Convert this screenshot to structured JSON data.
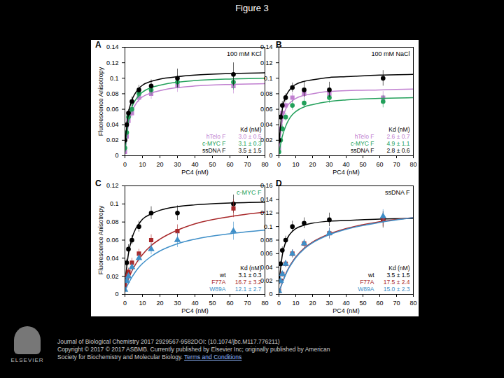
{
  "slide": {
    "title": "Figure 3",
    "logo": "ELSEVIER",
    "footer": [
      "Journal of Biological Chemistry 2017 2929567-9582DOI: (10.1074/jbc.M117.776211)",
      "Copyright © 2017 © 2017 ASBMB. Currently published by Elsevier Inc; originally published by American",
      "Society for Biochemistry and Molecular Biology."
    ],
    "footer_link": "Terms and Conditions"
  },
  "chart_data": [
    {
      "type": "scatter",
      "title": "A",
      "annotation": {
        "text": "100 mM KCl",
        "color": "#000000"
      },
      "x_label": "PC4 (nM)",
      "y_label": "Fluorescence Anisotropy",
      "legend_title": "Kd (nM)",
      "legend": "bottom-right",
      "grid": false,
      "xlim": [
        0,
        80
      ],
      "xticks": [
        0,
        10,
        20,
        30,
        40,
        50,
        60,
        70,
        80
      ],
      "ylim": [
        0,
        0.14
      ],
      "yticks": [
        0,
        0.02,
        0.04,
        0.06,
        0.08,
        0.1,
        0.12,
        0.14
      ],
      "x": [
        0,
        1,
        2,
        4,
        8,
        15,
        30,
        62
      ],
      "fit_x": [
        0,
        2,
        4,
        6,
        8,
        10,
        15,
        20,
        30,
        40,
        60,
        80
      ],
      "series": [
        {
          "name": "hTelo F",
          "kd_label": "3.0 ± 0.5",
          "color": "#c07fd0",
          "marker": "square",
          "values": [
            0.005,
            0.025,
            0.045,
            0.055,
            0.075,
            0.08,
            0.09,
            0.09
          ],
          "errors": [
            0.003,
            0.004,
            0.005,
            0.006,
            0.006,
            0.007,
            0.008,
            0.01
          ],
          "fit": [
            0.003,
            0.04,
            0.057,
            0.066,
            0.072,
            0.076,
            0.081,
            0.084,
            0.088,
            0.09,
            0.092,
            0.093
          ]
        },
        {
          "name": "c-MYC F",
          "kd_label": "3.1 ± 0.3",
          "color": "#22a05a",
          "marker": "circle",
          "values": [
            0.01,
            0.03,
            0.05,
            0.06,
            0.08,
            0.085,
            0.095,
            0.095
          ],
          "errors": [
            0.003,
            0.004,
            0.005,
            0.006,
            0.006,
            0.007,
            0.008,
            0.01
          ],
          "fit": [
            0.005,
            0.045,
            0.063,
            0.072,
            0.078,
            0.082,
            0.088,
            0.091,
            0.095,
            0.097,
            0.099,
            0.1
          ]
        },
        {
          "name": "ssDNA F",
          "kd_label": "3.5 ± 1.5",
          "color": "#000000",
          "marker": "circle",
          "values": [
            0.02,
            0.04,
            0.055,
            0.07,
            0.085,
            0.09,
            0.1,
            0.105
          ],
          "errors": [
            0.003,
            0.004,
            0.005,
            0.006,
            0.006,
            0.008,
            0.012,
            0.015
          ],
          "fit": [
            0.015,
            0.055,
            0.072,
            0.081,
            0.087,
            0.091,
            0.096,
            0.099,
            0.102,
            0.104,
            0.106,
            0.107
          ]
        }
      ]
    },
    {
      "type": "scatter",
      "title": "B",
      "annotation": {
        "text": "100 mM NaCl",
        "color": "#000000"
      },
      "x_label": "PC4 (nM)",
      "y_label": null,
      "legend_title": "Kd (nM)",
      "legend": "bottom-right",
      "grid": false,
      "xlim": [
        0,
        80
      ],
      "xticks": [
        0,
        10,
        20,
        30,
        40,
        50,
        60,
        70,
        80
      ],
      "ylim": [
        0,
        0.14
      ],
      "yticks": [
        0,
        0.02,
        0.04,
        0.06,
        0.08,
        0.1,
        0.12,
        0.14
      ],
      "x": [
        0,
        1,
        2,
        4,
        8,
        15,
        30,
        62
      ],
      "fit_x": [
        0,
        2,
        4,
        6,
        8,
        10,
        15,
        20,
        30,
        40,
        60,
        80
      ],
      "series": [
        {
          "name": "hTelo F",
          "kd_label": "2.6 ± 0.7",
          "color": "#c07fd0",
          "marker": "square",
          "values": [
            0.01,
            0.035,
            0.055,
            0.065,
            0.075,
            0.08,
            0.08,
            0.075
          ],
          "errors": [
            0.003,
            0.004,
            0.005,
            0.005,
            0.006,
            0.006,
            0.007,
            0.008
          ],
          "fit": [
            0.008,
            0.045,
            0.06,
            0.067,
            0.071,
            0.074,
            0.078,
            0.08,
            0.083,
            0.084,
            0.085,
            0.086
          ]
        },
        {
          "name": "c-MYC F",
          "kd_label": "4.9 ± 1.1",
          "color": "#22a05a",
          "marker": "circle",
          "values": [
            0.005,
            0.02,
            0.035,
            0.05,
            0.065,
            0.068,
            0.075,
            0.07
          ],
          "errors": [
            0.003,
            0.004,
            0.005,
            0.005,
            0.006,
            0.006,
            0.007,
            0.008
          ],
          "fit": [
            0.003,
            0.025,
            0.038,
            0.047,
            0.053,
            0.057,
            0.063,
            0.066,
            0.07,
            0.072,
            0.074,
            0.075
          ]
        },
        {
          "name": "ssDNA F",
          "kd_label": "2.8 ± 0.6",
          "color": "#000000",
          "marker": "circle",
          "values": [
            0.02,
            0.05,
            0.065,
            0.075,
            0.088,
            0.085,
            0.085,
            0.1
          ],
          "errors": [
            0.003,
            0.004,
            0.005,
            0.005,
            0.006,
            0.01,
            0.01,
            0.01
          ],
          "fit": [
            0.015,
            0.06,
            0.076,
            0.084,
            0.089,
            0.092,
            0.096,
            0.098,
            0.101,
            0.102,
            0.104,
            0.105
          ]
        }
      ]
    },
    {
      "type": "scatter",
      "title": "C",
      "annotation": {
        "text": "c-MYC F",
        "color": "#22a05a"
      },
      "x_label": "PC4 (nM)",
      "y_label": "Fluorescence Anisotropy",
      "legend_title": "Kd (nM)",
      "legend": "bottom-right",
      "grid": false,
      "xlim": [
        0,
        80
      ],
      "xticks": [
        0,
        10,
        20,
        30,
        40,
        50,
        60,
        70,
        80
      ],
      "ylim": [
        0,
        0.12
      ],
      "yticks": [
        0,
        0.02,
        0.04,
        0.06,
        0.08,
        0.1,
        0.12
      ],
      "x": [
        0,
        1,
        2,
        4,
        8,
        15,
        30,
        62
      ],
      "fit_x": [
        0,
        2,
        4,
        6,
        8,
        10,
        15,
        20,
        30,
        40,
        60,
        80
      ],
      "series": [
        {
          "name": "wt",
          "kd_label": "3.1 ± 0.3",
          "color": "#000000",
          "marker": "circle",
          "values": [
            0.015,
            0.035,
            0.05,
            0.06,
            0.075,
            0.09,
            0.09,
            0.1
          ],
          "errors": [
            0.003,
            0.004,
            0.005,
            0.005,
            0.006,
            0.007,
            0.008,
            0.01
          ],
          "fit": [
            0.012,
            0.045,
            0.062,
            0.072,
            0.078,
            0.083,
            0.089,
            0.093,
            0.097,
            0.099,
            0.101,
            0.102
          ]
        },
        {
          "name": "F77A",
          "kd_label": "16.7 ± 3.2",
          "color": "#a8282a",
          "marker": "square",
          "values": [
            0.01,
            0.02,
            0.025,
            0.035,
            0.045,
            0.06,
            0.07,
            0.095
          ],
          "errors": [
            0.003,
            0.004,
            0.004,
            0.005,
            0.005,
            0.006,
            0.007,
            0.01
          ],
          "fit": [
            0.008,
            0.017,
            0.026,
            0.033,
            0.039,
            0.044,
            0.054,
            0.061,
            0.071,
            0.078,
            0.086,
            0.091
          ]
        },
        {
          "name": "W89A",
          "kd_label": "12.1 ± 2.7",
          "color": "#3f8fc8",
          "marker": "triangle",
          "values": [
            0.005,
            0.015,
            0.02,
            0.03,
            0.04,
            0.05,
            0.06,
            0.07
          ],
          "errors": [
            0.003,
            0.004,
            0.004,
            0.005,
            0.005,
            0.006,
            0.008,
            0.01
          ],
          "fit": [
            0.004,
            0.012,
            0.019,
            0.025,
            0.03,
            0.034,
            0.042,
            0.048,
            0.056,
            0.061,
            0.067,
            0.071
          ]
        }
      ]
    },
    {
      "type": "scatter",
      "title": "D",
      "annotation": {
        "text": "ssDNA F",
        "color": "#000000"
      },
      "x_label": "PC4 (nM)",
      "y_label": null,
      "legend_title": "Kd (nM)",
      "legend": "bottom-right",
      "grid": false,
      "xlim": [
        0,
        80
      ],
      "xticks": [
        0,
        10,
        20,
        30,
        40,
        50,
        60,
        70,
        80
      ],
      "ylim": [
        0,
        0.16
      ],
      "yticks": [
        0,
        0.02,
        0.04,
        0.06,
        0.08,
        0.1,
        0.12,
        0.14,
        0.16
      ],
      "x": [
        0,
        1,
        2,
        4,
        8,
        15,
        30,
        62
      ],
      "fit_x": [
        0,
        2,
        4,
        6,
        8,
        10,
        15,
        20,
        30,
        40,
        60,
        80
      ],
      "series": [
        {
          "name": "wt",
          "kd_label": "3.5 ± 1.5",
          "color": "#000000",
          "marker": "circle",
          "values": [
            0.02,
            0.045,
            0.065,
            0.08,
            0.1,
            0.105,
            0.11,
            0.11
          ],
          "errors": [
            0.003,
            0.004,
            0.005,
            0.006,
            0.008,
            0.008,
            0.01,
            0.012
          ],
          "fit": [
            0.015,
            0.058,
            0.077,
            0.087,
            0.093,
            0.097,
            0.102,
            0.105,
            0.108,
            0.109,
            0.111,
            0.112
          ]
        },
        {
          "name": "F77A",
          "kd_label": "17.5 ± 2.4",
          "color": "#a8282a",
          "marker": "square",
          "values": [
            0.005,
            0.02,
            0.03,
            0.045,
            0.06,
            0.075,
            0.09,
            0.11
          ],
          "errors": [
            0.003,
            0.004,
            0.004,
            0.005,
            0.006,
            0.006,
            0.008,
            0.01
          ],
          "fit": [
            0.003,
            0.017,
            0.03,
            0.04,
            0.048,
            0.055,
            0.068,
            0.077,
            0.089,
            0.097,
            0.107,
            0.113
          ]
        },
        {
          "name": "W89A",
          "kd_label": "15.0 ± 2.3",
          "color": "#3f8fc8",
          "marker": "triangle",
          "values": [
            0.005,
            0.02,
            0.03,
            0.045,
            0.06,
            0.075,
            0.09,
            0.115
          ],
          "errors": [
            0.003,
            0.004,
            0.004,
            0.005,
            0.006,
            0.006,
            0.008,
            0.01
          ],
          "fit": [
            0.003,
            0.017,
            0.029,
            0.039,
            0.047,
            0.054,
            0.067,
            0.076,
            0.088,
            0.096,
            0.106,
            0.113
          ]
        }
      ]
    }
  ]
}
